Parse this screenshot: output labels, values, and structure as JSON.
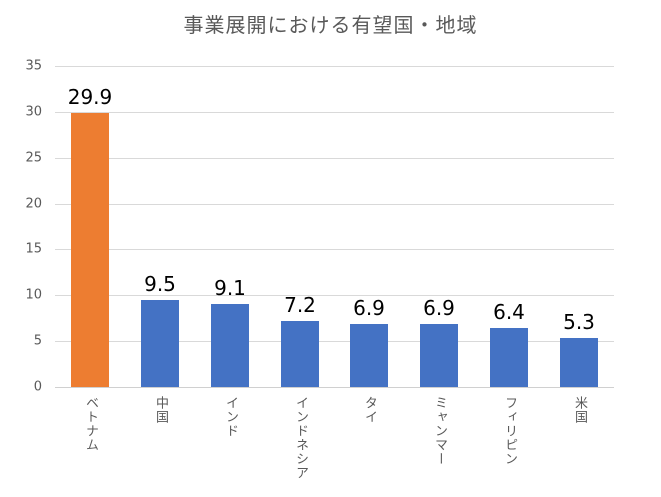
{
  "chart_data": {
    "type": "bar",
    "title": "事業展開における有望国・地域",
    "xlabel": "",
    "ylabel": "",
    "ylim": [
      0,
      35
    ],
    "yticks": [
      0,
      5,
      10,
      15,
      20,
      25,
      30,
      35
    ],
    "grid": true,
    "legend": "none",
    "categories": [
      "ベトナム",
      "中国",
      "インド",
      "インドネシア",
      "タイ",
      "ミャンマー",
      "フィリピン",
      "米国"
    ],
    "values": [
      29.9,
      9.5,
      9.1,
      7.2,
      6.9,
      6.9,
      6.4,
      5.3
    ],
    "value_labels": [
      "29.9",
      "9.5",
      "9.1",
      "7.2",
      "6.9",
      "6.9",
      "6.4",
      "5.3"
    ],
    "colors": [
      "#ED7D31",
      "#4472C4",
      "#4472C4",
      "#4472C4",
      "#4472C4",
      "#4472C4",
      "#4472C4",
      "#4472C4"
    ]
  }
}
